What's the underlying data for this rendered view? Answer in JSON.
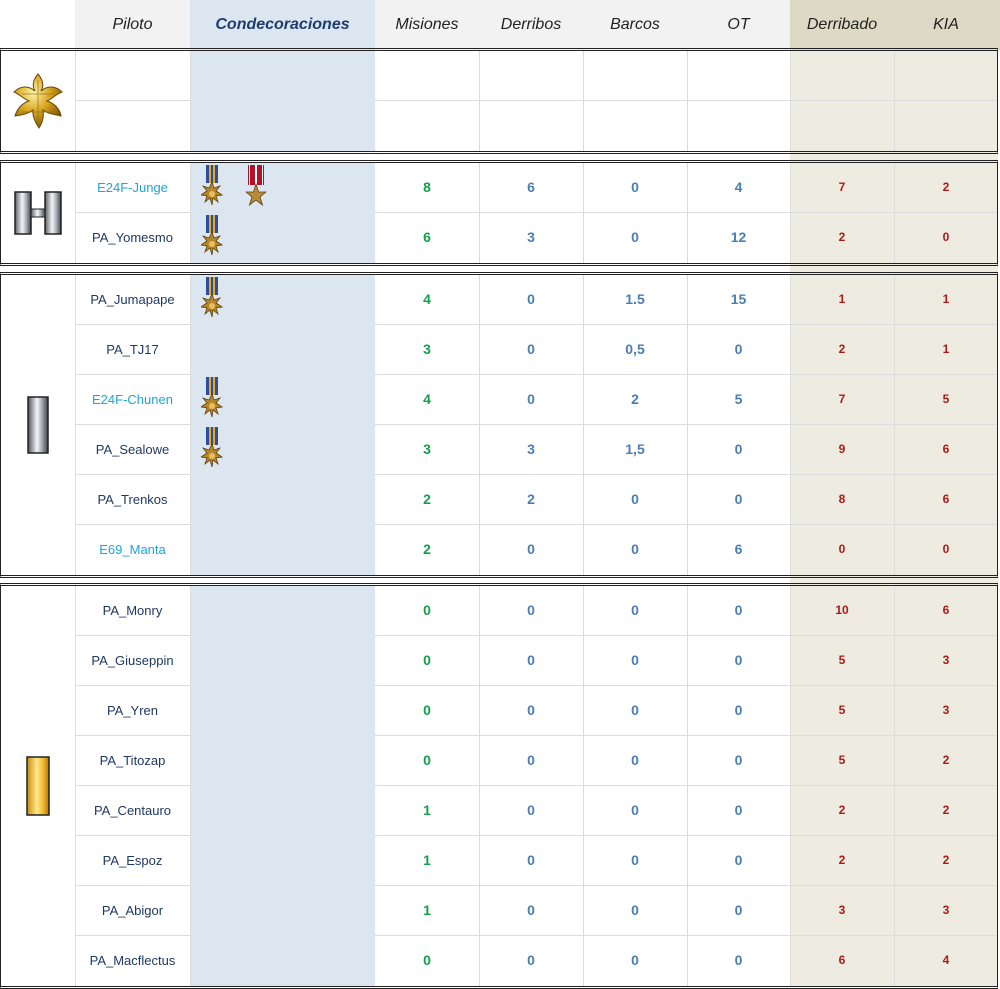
{
  "headers": {
    "piloto": "Piloto",
    "condecoraciones": "Condecoraciones",
    "misiones": "Misiones",
    "derribos": "Derribos",
    "barcos": "Barcos",
    "ot": "OT",
    "derribado": "Derribado",
    "kia": "KIA"
  },
  "colors": {
    "mission_green": "#14a04a",
    "stat_blue": "#4a7eb5",
    "loss_red": "#b01818",
    "name_navy": "#1f3864",
    "name_highlight": "#1ea6d6",
    "deco_column": "#dce6f1",
    "loss_column": "#eeece1"
  },
  "groups": [
    {
      "rank_icon": "major-oak-leaf-icon",
      "rows": [
        {
          "name": "",
          "misiones": "",
          "derribos": "",
          "barcos": "",
          "ot": "",
          "derribado": "",
          "kia": "",
          "medals": [],
          "highlight": false
        },
        {
          "name": "",
          "misiones": "",
          "derribos": "",
          "barcos": "",
          "ot": "",
          "derribado": "",
          "kia": "",
          "medals": [],
          "highlight": false
        }
      ]
    },
    {
      "rank_icon": "captain-double-bar-icon",
      "rows": [
        {
          "name": "E24F-Junge",
          "misiones": "8",
          "derribos": "6",
          "barcos": "0",
          "ot": "4",
          "derribado": "7",
          "kia": "2",
          "medals": [
            "air-medal-icon",
            "bronze-star-icon"
          ],
          "highlight": true
        },
        {
          "name": "PA_Yomesmo",
          "misiones": "6",
          "derribos": "3",
          "barcos": "0",
          "ot": "12",
          "derribado": "2",
          "kia": "0",
          "medals": [
            "air-medal-icon"
          ],
          "highlight": false
        }
      ]
    },
    {
      "rank_icon": "first-lieutenant-silver-bar-icon",
      "rows": [
        {
          "name": "PA_Jumapape",
          "misiones": "4",
          "derribos": "0",
          "barcos": "1.5",
          "ot": "15",
          "derribado": "1",
          "kia": "1",
          "medals": [
            "air-medal-icon"
          ],
          "highlight": false
        },
        {
          "name": "PA_TJ17",
          "misiones": "3",
          "derribos": "0",
          "barcos": "0,5",
          "ot": "0",
          "derribado": "2",
          "kia": "1",
          "medals": [],
          "highlight": false
        },
        {
          "name": "E24F-Chunen",
          "misiones": "4",
          "derribos": "0",
          "barcos": "2",
          "ot": "5",
          "derribado": "7",
          "kia": "5",
          "medals": [
            "air-medal-icon"
          ],
          "highlight": true
        },
        {
          "name": "PA_Sealowe",
          "misiones": "3",
          "derribos": "3",
          "barcos": "1,5",
          "ot": "0",
          "derribado": "9",
          "kia": "6",
          "medals": [
            "air-medal-icon"
          ],
          "highlight": false
        },
        {
          "name": "PA_Trenkos",
          "misiones": "2",
          "derribos": "2",
          "barcos": "0",
          "ot": "0",
          "derribado": "8",
          "kia": "6",
          "medals": [],
          "highlight": false
        },
        {
          "name": "E69_Manta",
          "misiones": "2",
          "derribos": "0",
          "barcos": "0",
          "ot": "6",
          "derribado": "0",
          "kia": "0",
          "medals": [],
          "highlight": true
        }
      ]
    },
    {
      "rank_icon": "second-lieutenant-gold-bar-icon",
      "rows": [
        {
          "name": "PA_Monry",
          "misiones": "0",
          "derribos": "0",
          "barcos": "0",
          "ot": "0",
          "derribado": "10",
          "kia": "6",
          "medals": [],
          "highlight": false
        },
        {
          "name": "PA_Giuseppin",
          "misiones": "0",
          "derribos": "0",
          "barcos": "0",
          "ot": "0",
          "derribado": "5",
          "kia": "3",
          "medals": [],
          "highlight": false
        },
        {
          "name": "PA_Yren",
          "misiones": "0",
          "derribos": "0",
          "barcos": "0",
          "ot": "0",
          "derribado": "5",
          "kia": "3",
          "medals": [],
          "highlight": false
        },
        {
          "name": "PA_Titozap",
          "misiones": "0",
          "derribos": "0",
          "barcos": "0",
          "ot": "0",
          "derribado": "5",
          "kia": "2",
          "medals": [],
          "highlight": false
        },
        {
          "name": "PA_Centauro",
          "misiones": "1",
          "derribos": "0",
          "barcos": "0",
          "ot": "0",
          "derribado": "2",
          "kia": "2",
          "medals": [],
          "highlight": false
        },
        {
          "name": "PA_Espoz",
          "misiones": "1",
          "derribos": "0",
          "barcos": "0",
          "ot": "0",
          "derribado": "2",
          "kia": "2",
          "medals": [],
          "highlight": false
        },
        {
          "name": "PA_Abigor",
          "misiones": "1",
          "derribos": "0",
          "barcos": "0",
          "ot": "0",
          "derribado": "3",
          "kia": "3",
          "medals": [],
          "highlight": false
        },
        {
          "name": "PA_Macflectus",
          "misiones": "0",
          "derribos": "0",
          "barcos": "0",
          "ot": "0",
          "derribado": "6",
          "kia": "4",
          "medals": [],
          "highlight": false
        }
      ]
    }
  ]
}
